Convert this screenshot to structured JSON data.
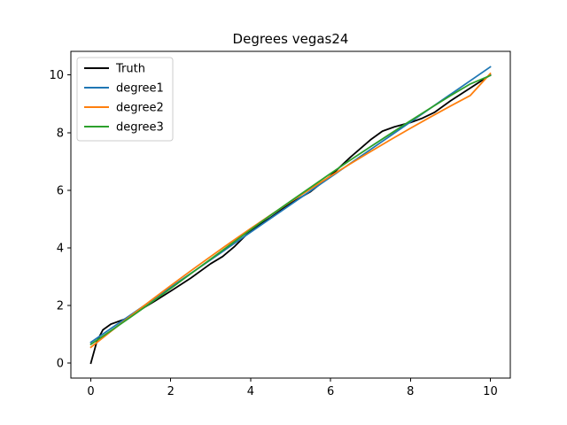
{
  "chart_data": {
    "type": "line",
    "title": "Degrees vegas24",
    "xlabel": "",
    "ylabel": "",
    "xlim": [
      -0.5,
      10.5
    ],
    "ylim": [
      -0.52,
      10.82
    ],
    "xticks": [
      0,
      2,
      4,
      6,
      8,
      10
    ],
    "yticks": [
      0,
      2,
      4,
      6,
      8,
      10
    ],
    "grid": false,
    "legend_position": "upper-left",
    "series": [
      {
        "name": "Truth",
        "color": "#000000",
        "x": [
          0,
          0.15,
          0.3,
          0.5,
          0.8,
          1.0,
          1.3,
          1.6,
          2.0,
          2.5,
          3.0,
          3.3,
          3.6,
          4.0,
          4.5,
          5.0,
          5.5,
          6.0,
          6.5,
          7.0,
          7.3,
          7.6,
          8.0,
          8.3,
          8.6,
          9.0,
          9.5,
          10.0
        ],
        "y": [
          0.0,
          0.75,
          1.15,
          1.35,
          1.5,
          1.62,
          1.9,
          2.15,
          2.5,
          2.95,
          3.45,
          3.7,
          4.05,
          4.6,
          5.05,
          5.55,
          5.95,
          6.5,
          7.15,
          7.75,
          8.05,
          8.2,
          8.35,
          8.5,
          8.7,
          9.1,
          9.55,
          10.0
        ]
      },
      {
        "name": "degree1",
        "color": "#1f77b4",
        "x": [
          0,
          10
        ],
        "y": [
          0.72,
          10.28
        ]
      },
      {
        "name": "degree2",
        "color": "#ff7f0e",
        "x": [
          0,
          0.5,
          1,
          1.5,
          2,
          2.5,
          3,
          3.5,
          4,
          4.5,
          5,
          5.5,
          6,
          6.5,
          7,
          7.5,
          8,
          8.5,
          9,
          9.5,
          10
        ],
        "y": [
          0.55,
          1.1,
          1.64,
          2.17,
          2.69,
          3.2,
          3.7,
          4.19,
          4.67,
          5.14,
          5.6,
          6.05,
          6.49,
          6.92,
          7.34,
          7.75,
          8.15,
          8.54,
          8.92,
          9.29,
          10.05
        ]
      },
      {
        "name": "degree3",
        "color": "#2ca02c",
        "x": [
          0,
          0.5,
          1,
          1.5,
          2,
          2.5,
          3,
          3.5,
          4,
          4.5,
          5,
          5.5,
          6,
          6.5,
          7,
          7.5,
          8,
          8.5,
          9,
          9.5,
          10
        ],
        "y": [
          0.65,
          1.12,
          1.6,
          2.09,
          2.59,
          3.1,
          3.61,
          4.12,
          4.63,
          5.13,
          5.62,
          6.1,
          6.58,
          7.05,
          7.51,
          7.96,
          8.41,
          8.85,
          9.28,
          9.69,
          9.98
        ]
      }
    ]
  }
}
